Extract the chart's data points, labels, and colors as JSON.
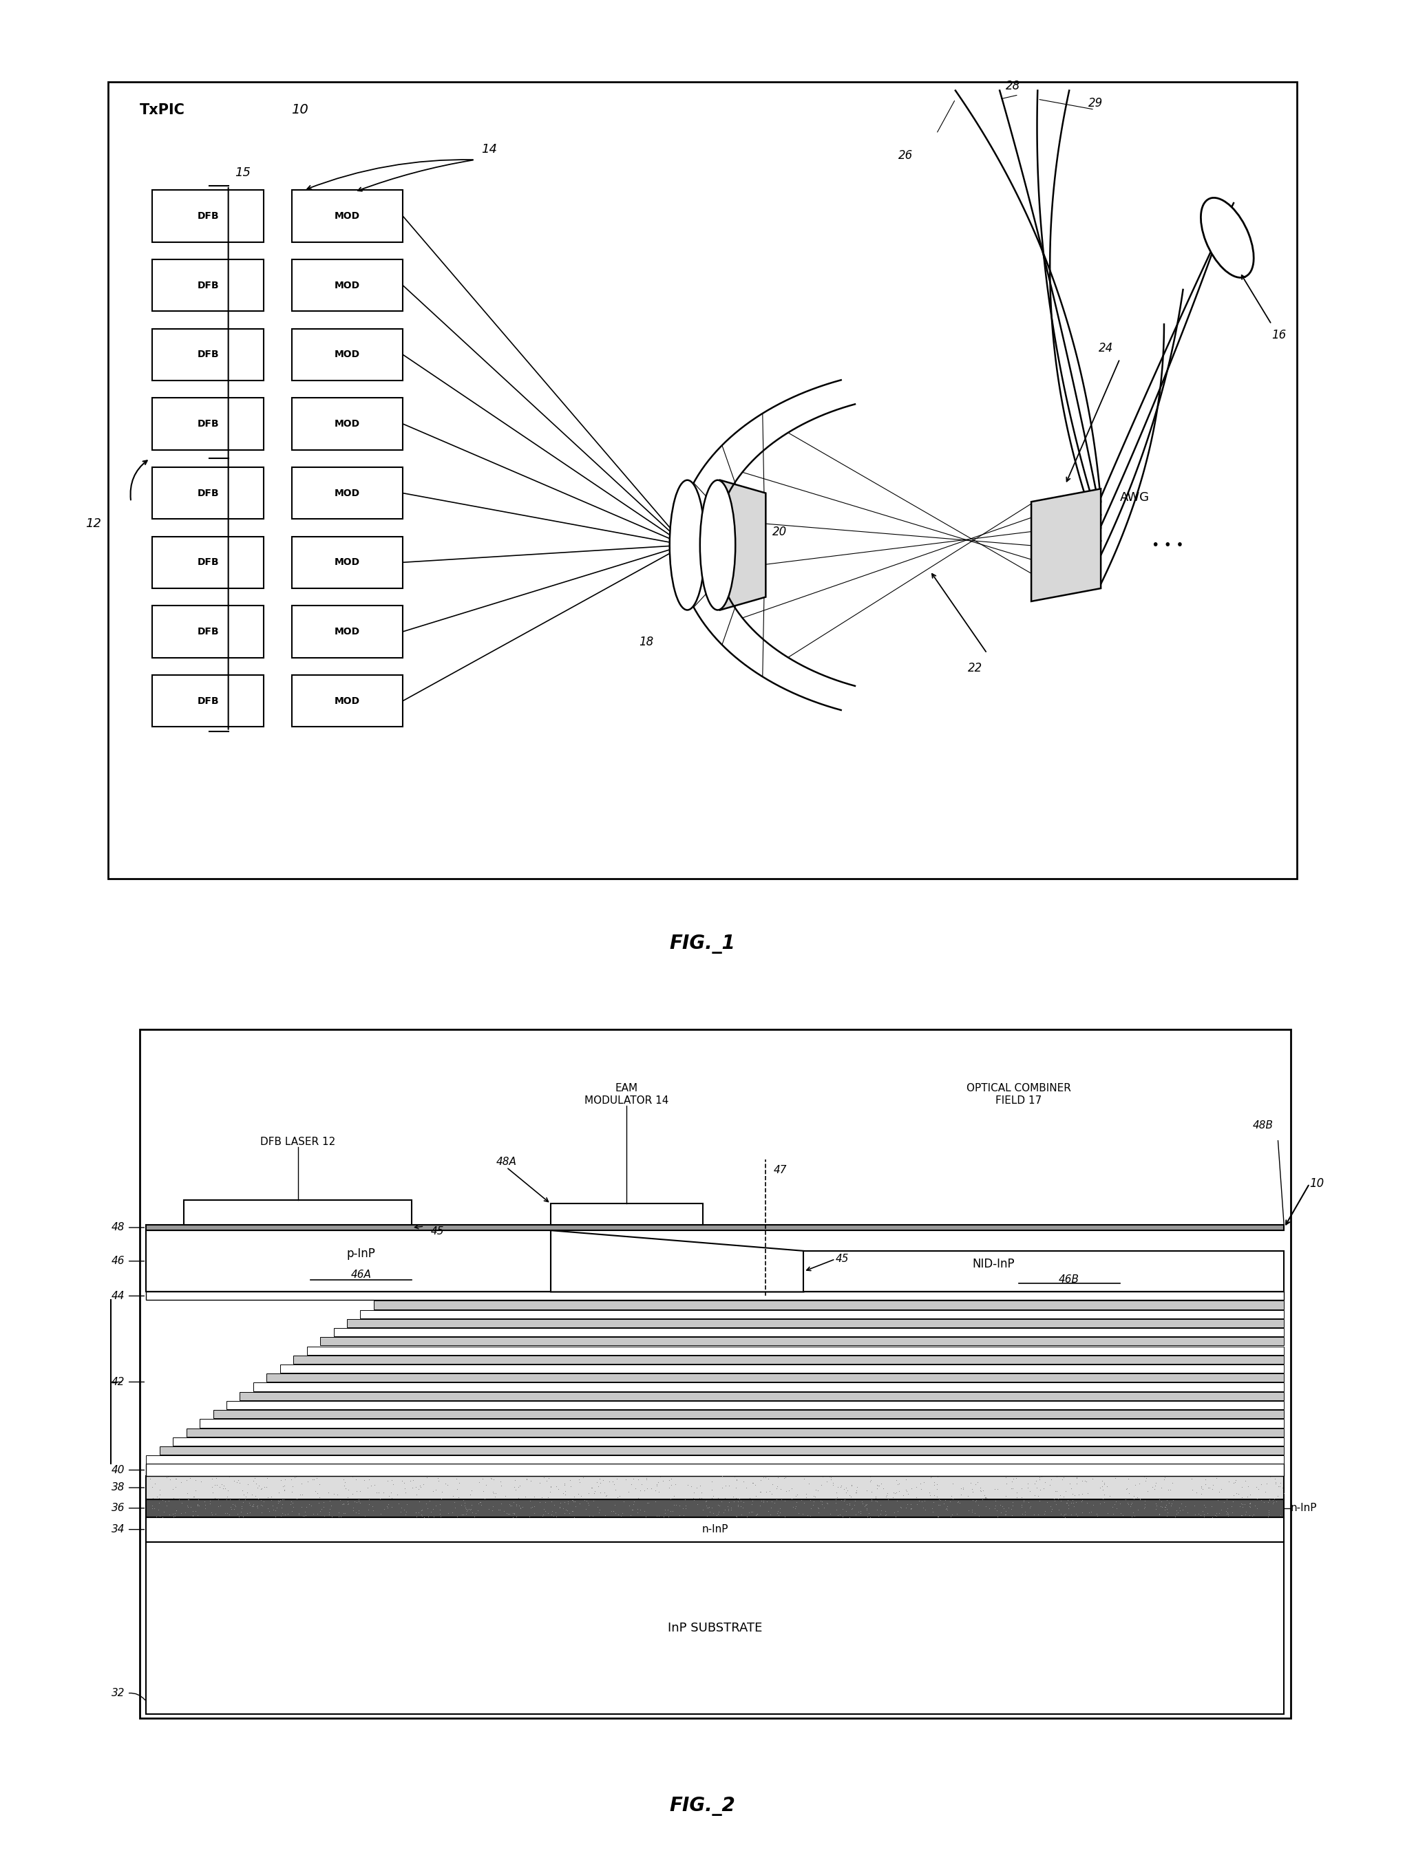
{
  "bg_color": "#ffffff",
  "fig1": {
    "txpic_label": "TxPIC",
    "txpic_num": "10",
    "dfb_text": "DFB",
    "mod_text": "MOD",
    "num_rows": 8,
    "label_12": "12",
    "label_14": "14",
    "label_15": "15",
    "label_16": "16",
    "label_18": "18",
    "label_20": "20",
    "label_22": "22",
    "label_24": "24",
    "label_26": "26",
    "label_28": "28",
    "label_29": "29",
    "awg_text": "AWG",
    "fig_label": "FIG._1"
  },
  "fig2": {
    "label_10": "10",
    "label_32": "32",
    "label_34": "34",
    "label_36": "36",
    "label_38": "38",
    "label_40": "40",
    "label_42": "42",
    "label_44": "44",
    "label_45a": "45",
    "label_45b": "45",
    "label_46a": "46A",
    "label_46b": "46B",
    "label_47": "47",
    "label_48": "48",
    "label_48a": "48A",
    "label_48b": "48B",
    "dfb_label": "DFB LASER 12",
    "eam_line1": "EAM",
    "eam_line2": "MODULATOR 14",
    "combiner_line1": "OPTICAL COMBINER",
    "combiner_line2": "FIELD 17",
    "pinp_label": "p-InP",
    "nid_label": "NID-InP",
    "ninp_label": "n-InP",
    "ninp_right": "n-InP",
    "substrate_label": "InP SUBSTRATE",
    "fig_label": "FIG._2"
  }
}
